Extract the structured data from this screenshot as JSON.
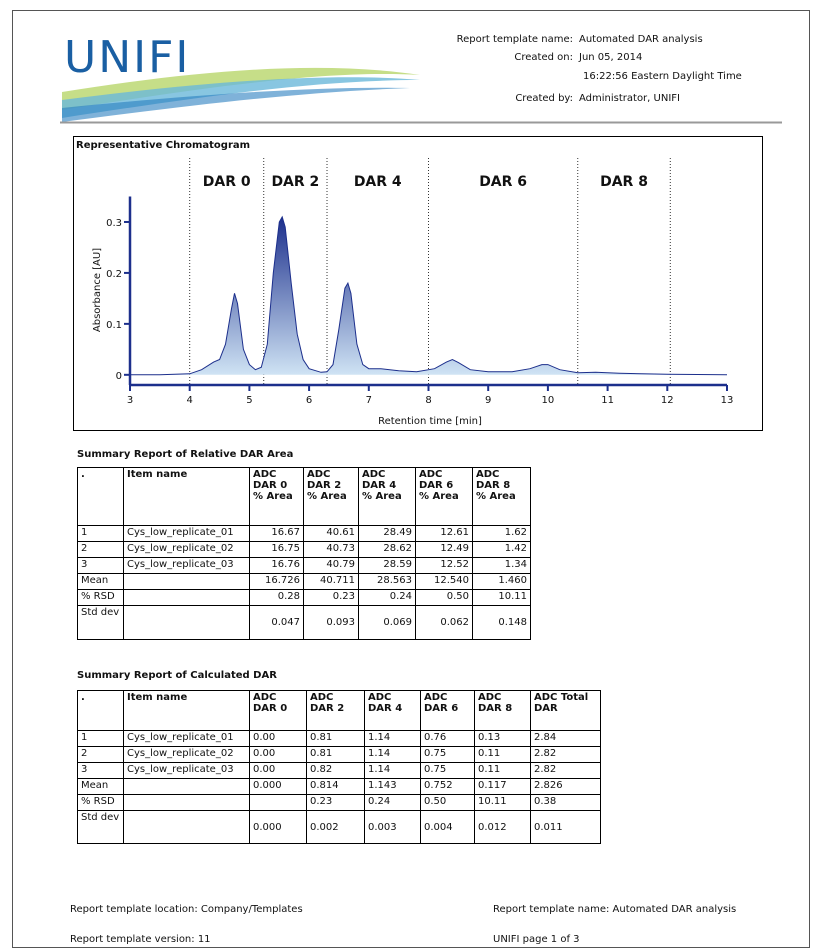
{
  "header": {
    "logo": "UNIFI",
    "fields": [
      {
        "label": "Report template name:",
        "value": "Automated DAR analysis"
      },
      {
        "label": "Created on:",
        "value": "Jun 05, 2014"
      },
      {
        "label": "",
        "value": "16:22:56 Eastern Daylight Time"
      },
      {
        "label": "Created by:",
        "value": "Administrator, UNIFI"
      }
    ]
  },
  "chart_data": {
    "type": "line",
    "title": "Representative Chromatogram",
    "x_label": "Retention time [min]",
    "y_label": "Absorbance [AU]",
    "xlim": [
      3,
      13
    ],
    "ylim": [
      -0.02,
      0.35
    ],
    "xticks": [
      3,
      4,
      5,
      6,
      7,
      8,
      9,
      10,
      11,
      12,
      13
    ],
    "yticks": [
      0,
      0.1,
      0.2,
      0.3
    ],
    "color": "#1c2f8c",
    "regions": {
      "labels": [
        "DAR 0",
        "DAR 2",
        "DAR 4",
        "DAR 6",
        "DAR 8"
      ],
      "boundaries": [
        4.0,
        5.24,
        6.3,
        8.0,
        10.5,
        12.05
      ]
    },
    "x": [
      3,
      3.5,
      4.0,
      4.2,
      4.4,
      4.5,
      4.6,
      4.7,
      4.75,
      4.8,
      4.9,
      5.0,
      5.1,
      5.2,
      5.3,
      5.4,
      5.5,
      5.55,
      5.6,
      5.7,
      5.8,
      5.9,
      6.0,
      6.2,
      6.3,
      6.4,
      6.5,
      6.6,
      6.65,
      6.7,
      6.8,
      6.9,
      7.0,
      7.2,
      7.5,
      7.8,
      8.1,
      8.3,
      8.4,
      8.5,
      8.7,
      9.0,
      9.4,
      9.7,
      9.9,
      10.0,
      10.2,
      10.5,
      10.8,
      11.2,
      12,
      13
    ],
    "values": [
      0,
      0,
      0.002,
      0.01,
      0.025,
      0.03,
      0.06,
      0.13,
      0.16,
      0.14,
      0.05,
      0.02,
      0.01,
      0.015,
      0.06,
      0.2,
      0.3,
      0.31,
      0.29,
      0.18,
      0.08,
      0.03,
      0.012,
      0.005,
      0.006,
      0.02,
      0.09,
      0.17,
      0.18,
      0.16,
      0.06,
      0.02,
      0.012,
      0.012,
      0.008,
      0.006,
      0.012,
      0.025,
      0.03,
      0.024,
      0.01,
      0.006,
      0.006,
      0.012,
      0.02,
      0.02,
      0.01,
      0.004,
      0.005,
      0.003,
      0.001,
      0
    ]
  },
  "tables": [
    {
      "title": "Summary Report of Relative DAR Area",
      "header": [
        [
          "."
        ],
        [
          "Item name"
        ],
        [
          "ADC",
          "DAR 0",
          "% Area"
        ],
        [
          "ADC",
          "DAR 2",
          "% Area"
        ],
        [
          "ADC",
          "DAR 4",
          "% Area"
        ],
        [
          "ADC",
          "DAR 6",
          "% Area"
        ],
        [
          "ADC",
          "DAR 8",
          "% Area"
        ]
      ],
      "rows": [
        [
          "1",
          "Cys_low_replicate_01",
          "16.67",
          "40.61",
          "28.49",
          "12.61",
          "1.62"
        ],
        [
          "2",
          "Cys_low_replicate_02",
          "16.75",
          "40.73",
          "28.62",
          "12.49",
          "1.42"
        ],
        [
          "3",
          "Cys_low_replicate_03",
          "16.76",
          "40.79",
          "28.59",
          "12.52",
          "1.34"
        ],
        [
          "Mean",
          "",
          "16.726",
          "40.711",
          "28.563",
          "12.540",
          "1.460"
        ],
        [
          "% RSD",
          "",
          "0.28",
          "0.23",
          "0.24",
          "0.50",
          "10.11"
        ],
        [
          "Std dev",
          "",
          "0.047",
          "0.093",
          "0.069",
          "0.062",
          "0.148"
        ]
      ]
    },
    {
      "title": "Summary Report of Calculated DAR",
      "header": [
        [
          "."
        ],
        [
          "Item name"
        ],
        [
          "ADC",
          "DAR 0"
        ],
        [
          "ADC",
          "DAR 2"
        ],
        [
          "ADC",
          "DAR 4"
        ],
        [
          "ADC",
          "DAR 6"
        ],
        [
          "ADC",
          "DAR 8"
        ],
        [
          "ADC Total",
          "DAR"
        ]
      ],
      "rows": [
        [
          "1",
          "Cys_low_replicate_01",
          "0.00",
          "0.81",
          "1.14",
          "0.76",
          "0.13",
          "2.84"
        ],
        [
          "2",
          "Cys_low_replicate_02",
          "0.00",
          "0.81",
          "1.14",
          "0.75",
          "0.11",
          "2.82"
        ],
        [
          "3",
          "Cys_low_replicate_03",
          "0.00",
          "0.82",
          "1.14",
          "0.75",
          "0.11",
          "2.82"
        ],
        [
          "Mean",
          "",
          "0.000",
          "0.814",
          "1.143",
          "0.752",
          "0.117",
          "2.826"
        ],
        [
          "% RSD",
          "",
          "",
          "0.23",
          "0.24",
          "0.50",
          "10.11",
          "0.38"
        ],
        [
          "Std dev",
          "",
          "0.000",
          "0.002",
          "0.003",
          "0.004",
          "0.012",
          "0.011"
        ]
      ]
    }
  ],
  "footer": {
    "location": "Report template location: Company/Templates",
    "name": "Report template name: Automated DAR analysis",
    "version": "Report template version: 11",
    "page": "UNIFI page 1 of 3"
  }
}
